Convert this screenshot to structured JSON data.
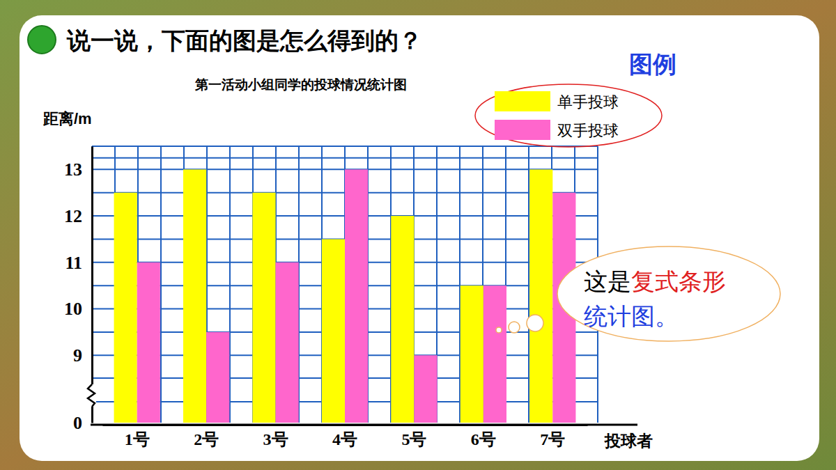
{
  "chart_data": {
    "type": "bar",
    "heading": "说一说，下面的图是怎么得到的？",
    "title": "第一活动小组同学的投球情况统计图",
    "y_label": "距离/m",
    "x_label": "投球者",
    "legend_title": "图例",
    "legend": "top-right",
    "annotations": [
      "这是",
      "复式条形",
      "统计图。"
    ],
    "categories": [
      "1号",
      "2号",
      "3号",
      "4号",
      "5号",
      "6号",
      "7号"
    ],
    "series": [
      {
        "name": "单手投球",
        "color": "#ffff00",
        "values": [
          12.5,
          13,
          12.5,
          11.5,
          12,
          10.5,
          13
        ]
      },
      {
        "name": "双手投球",
        "color": "#ff66cc",
        "values": [
          11,
          9.5,
          11,
          13,
          9,
          10.5,
          12.5
        ]
      }
    ],
    "ylim": [
      0,
      13.5
    ],
    "yticks": [
      0,
      9,
      10,
      11,
      12,
      13
    ],
    "grid": true
  }
}
